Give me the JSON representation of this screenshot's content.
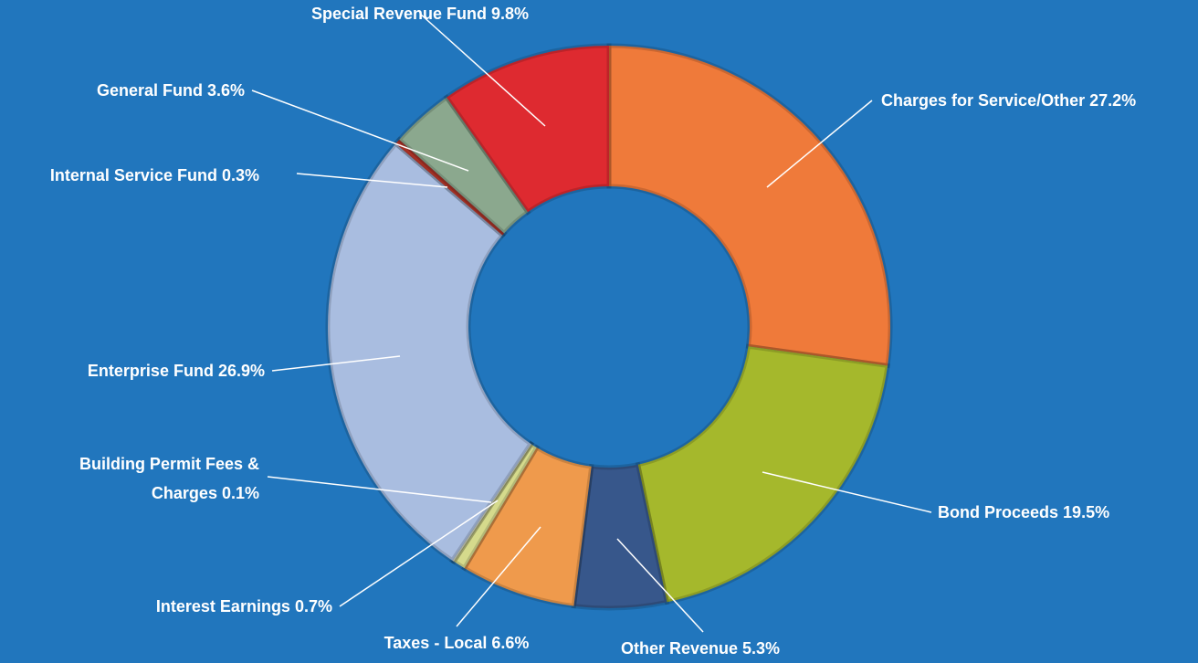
{
  "chart_data": {
    "type": "donut",
    "categories": [
      "Charges for Service/Other",
      "Bond Proceeds",
      "Other Revenue",
      "Taxes - Local",
      "Interest Earnings",
      "Building Permit Fees & Charges",
      "Enterprise Fund",
      "Internal Service Fund",
      "General Fund",
      "Special Revenue Fund"
    ],
    "values": [
      27.2,
      19.5,
      5.3,
      6.6,
      0.7,
      0.1,
      26.9,
      0.3,
      3.6,
      9.8
    ],
    "value_labels": [
      "27.2%",
      "19.5%",
      "5.3%",
      "6.6%",
      "0.7%",
      "0.1%",
      "26.9%",
      "0.3%",
      "3.6%",
      "9.8%"
    ],
    "colors": [
      "#ef7a3a",
      "#a5b82c",
      "#37578b",
      "#ef9a4c",
      "#d5da8c",
      "#eef0d8",
      "#a9bde0",
      "#c0392b",
      "#8ba88e",
      "#de2a30"
    ]
  }
}
